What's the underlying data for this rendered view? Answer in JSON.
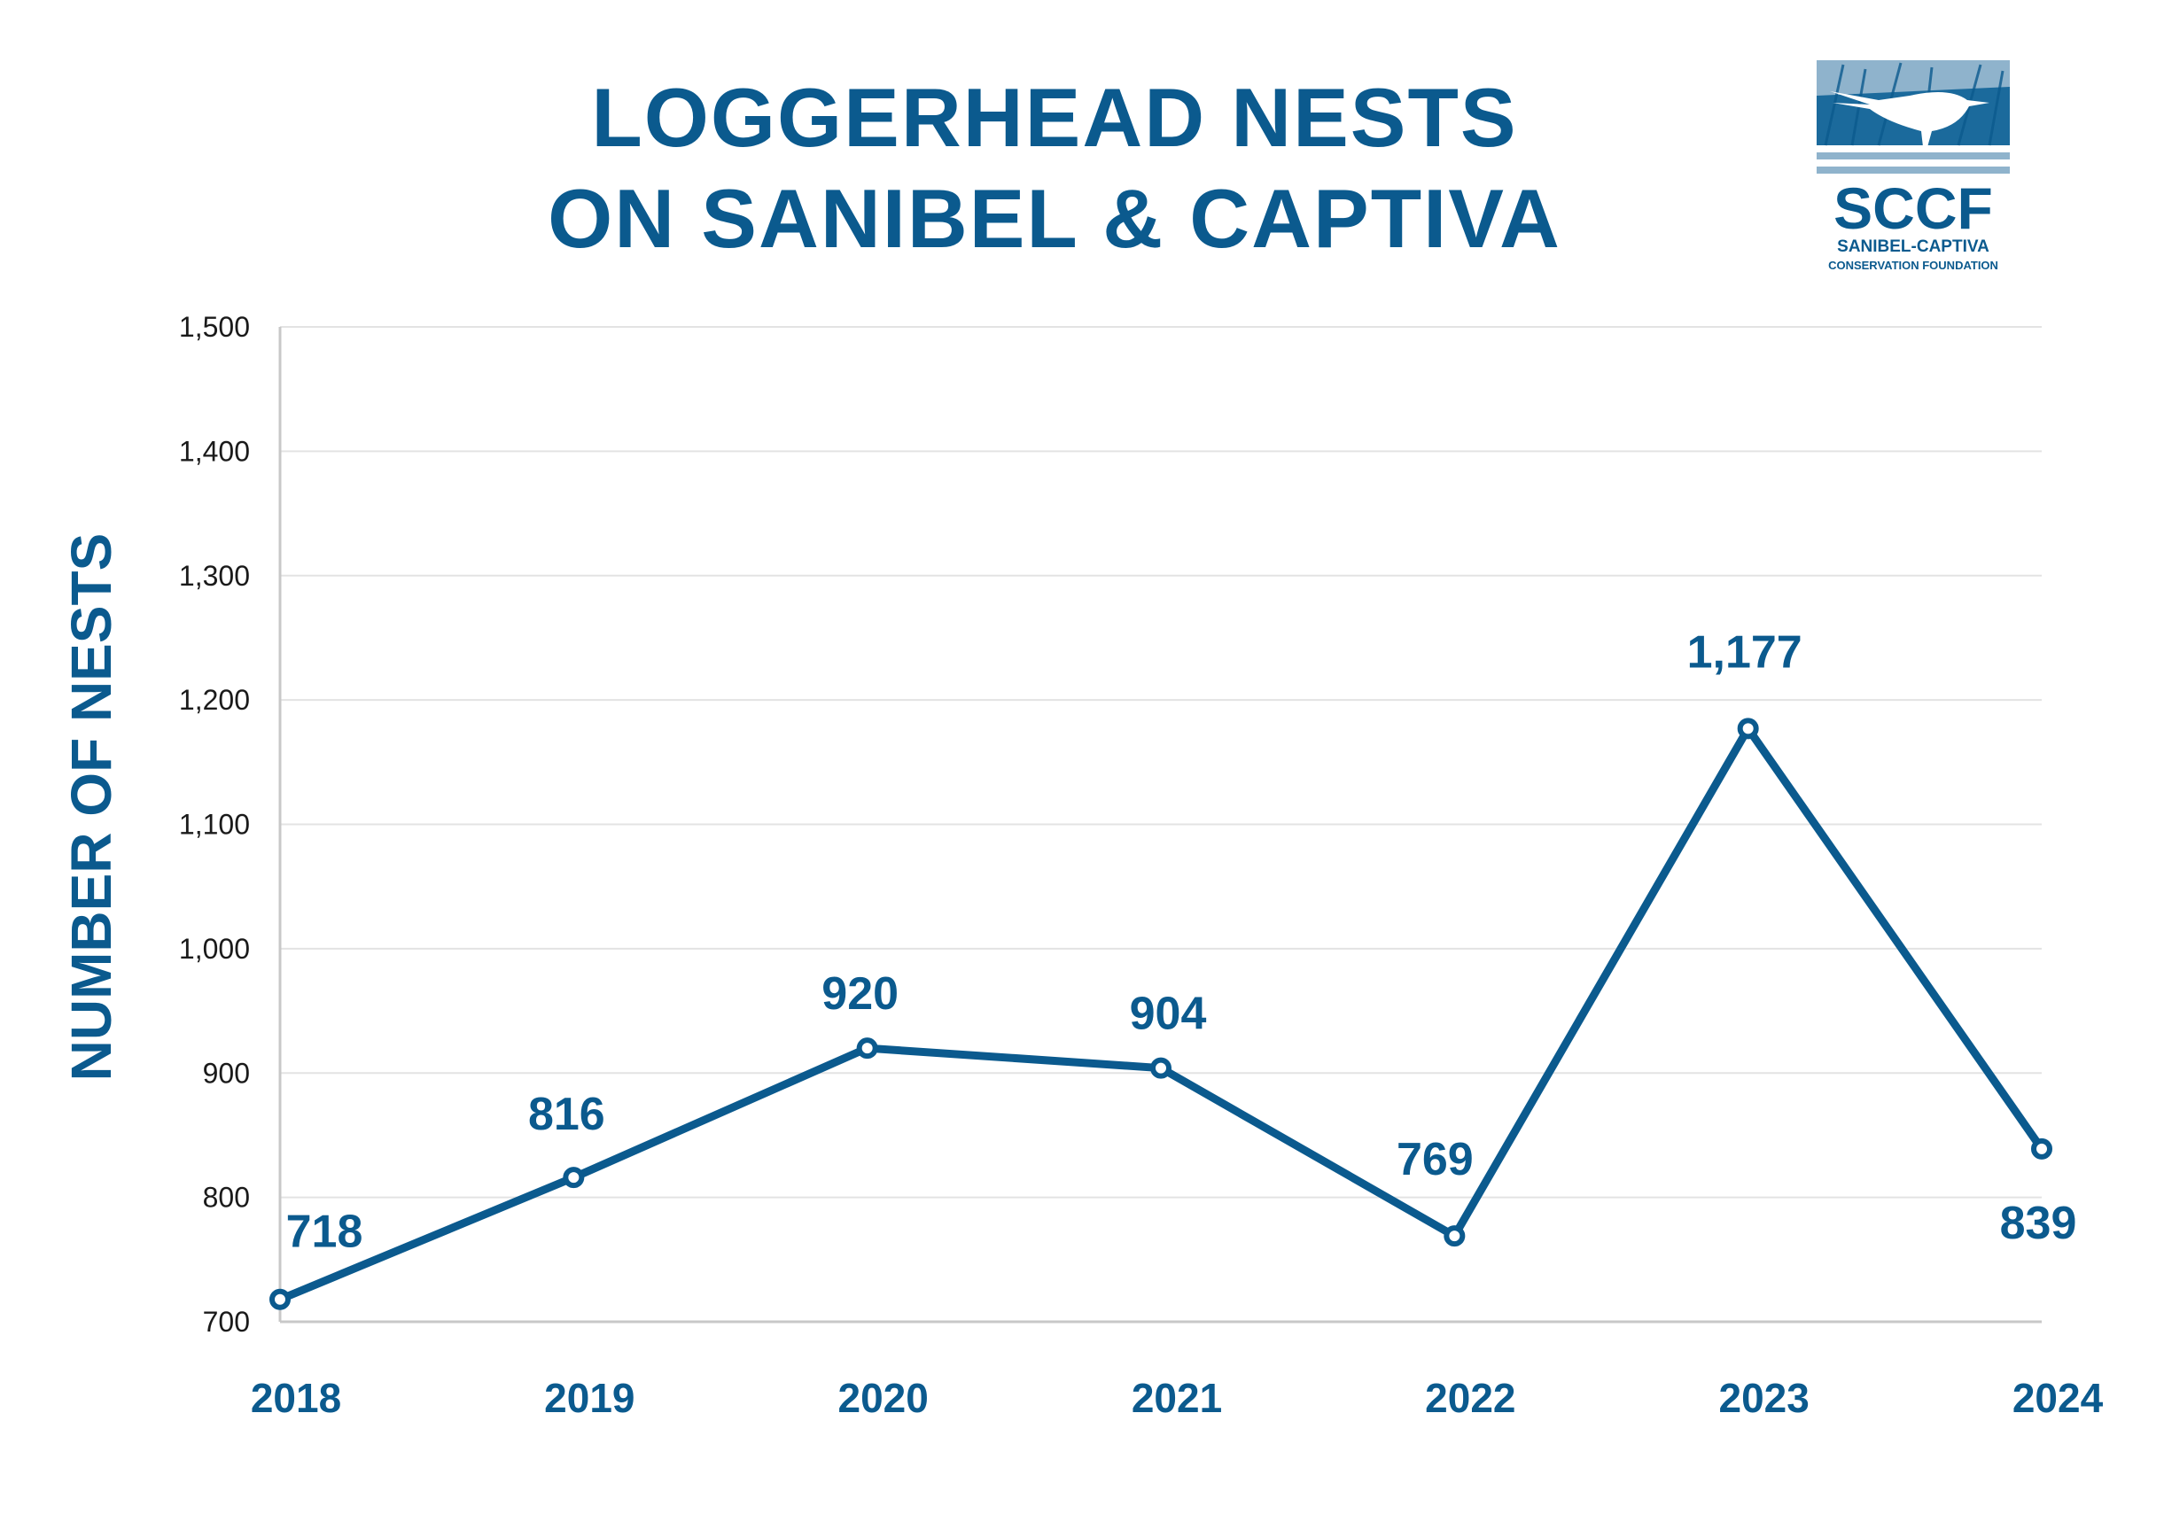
{
  "chart_data": {
    "type": "line",
    "title": [
      "LOGGERHEAD NESTS",
      "ON SANIBEL & CAPTIVA"
    ],
    "ylabel": "NUMBER OF NESTS",
    "xlabel": "",
    "categories": [
      "2018",
      "2019",
      "2020",
      "2021",
      "2022",
      "2023",
      "2024"
    ],
    "values": [
      718,
      816,
      920,
      904,
      769,
      1177,
      839
    ],
    "data_labels": [
      "718",
      "816",
      "920",
      "904",
      "769",
      "1,177",
      "839"
    ],
    "ylim": [
      700,
      1500
    ],
    "yticks": [
      700,
      800,
      900,
      1000,
      1100,
      1200,
      1300,
      1400,
      1500
    ],
    "ytick_labels": [
      "700",
      "800",
      "900",
      "1,000",
      "1,100",
      "1,200",
      "1,300",
      "1,400",
      "1,500"
    ],
    "grid": true,
    "colors": {
      "line": "#0b5a8e",
      "grid": "#e3e3e3",
      "axis": "#c8c8c8",
      "tick_text": "#1a1a1a"
    }
  },
  "logo": {
    "mark": "SCCF",
    "line1": "SANIBEL-CAPTIVA",
    "line2": "CONSERVATION FOUNDATION",
    "colors": {
      "dark": "#0b5a8e",
      "light": "#8fb3cc"
    }
  }
}
